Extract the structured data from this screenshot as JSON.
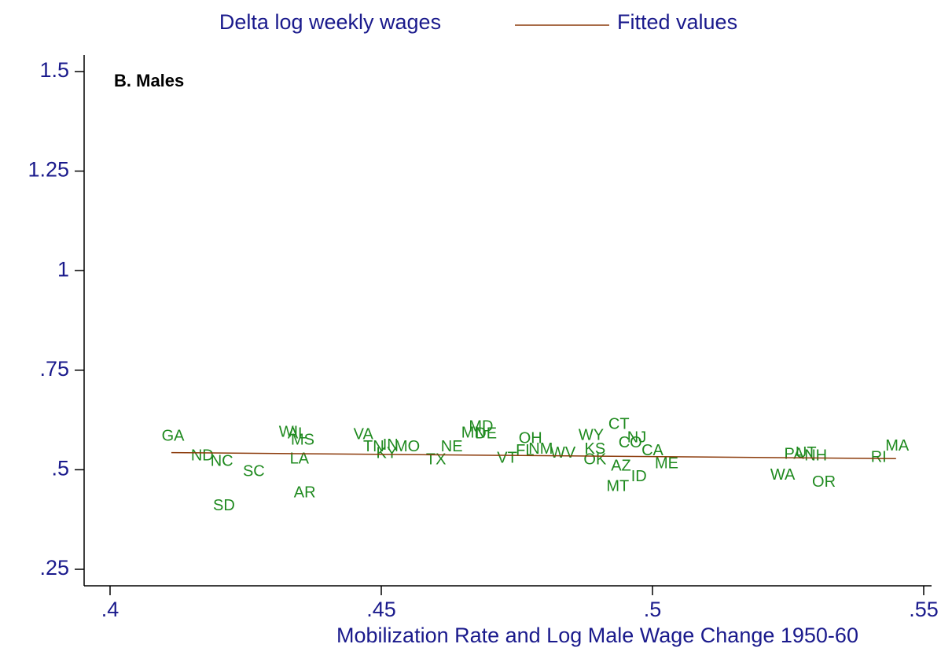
{
  "chart_data": {
    "type": "scatter",
    "annotation": "B. Males",
    "xlabel": "Mobilization Rate and Log Male Wage Change 1950-60",
    "xlim": [
      0.4,
      0.55
    ],
    "ylim": [
      0.25,
      1.5
    ],
    "xticks": [
      {
        "value": 0.4,
        "label": ".4"
      },
      {
        "value": 0.45,
        "label": ".45"
      },
      {
        "value": 0.5,
        "label": ".5"
      },
      {
        "value": 0.55,
        "label": ".55"
      }
    ],
    "yticks": [
      {
        "value": 0.25,
        "label": ".25"
      },
      {
        "value": 0.5,
        "label": ".5"
      },
      {
        "value": 0.75,
        "label": ".75"
      },
      1,
      1.25,
      1.5
    ],
    "series": [
      {
        "name": "Delta log weekly wages",
        "color": "#1f8a1f",
        "type": "label-scatter",
        "labels": [
          "GA",
          "ND",
          "NC",
          "SC",
          "SD",
          "WI",
          "AL",
          "MS",
          "LA",
          "AR",
          "VA",
          "TN",
          "IN",
          "MO",
          "KY",
          "TX",
          "NE",
          "MD",
          "MN",
          "DE",
          "OH",
          "VT",
          "FL",
          "NM",
          "WV",
          "KS",
          "WY",
          "OK",
          "CT",
          "NJ",
          "CO",
          "CA",
          "AZ",
          "ID",
          "MT",
          "ME",
          "WA",
          "PA",
          "UT",
          "NH",
          "OR",
          "RI",
          "MA"
        ],
        "x": [
          0.4116,
          0.417,
          0.4206,
          0.4265,
          0.421,
          0.4329,
          0.4345,
          0.4355,
          0.4349,
          0.4359,
          0.4467,
          0.4486,
          0.4517,
          0.4548,
          0.451,
          0.4601,
          0.463,
          0.4684,
          0.467,
          0.4693,
          0.4775,
          0.4732,
          0.4765,
          0.4794,
          0.4835,
          0.4894,
          0.4887,
          0.4894,
          0.4938,
          0.4971,
          0.4959,
          0.5,
          0.4942,
          0.4975,
          0.4936,
          0.5026,
          0.524,
          0.5261,
          0.5283,
          0.5301,
          0.5316,
          0.5417,
          0.5451
        ],
        "values": [
          0.583,
          0.534,
          0.52,
          0.494,
          0.409,
          0.593,
          0.589,
          0.573,
          0.526,
          0.441,
          0.587,
          0.557,
          0.561,
          0.557,
          0.54,
          0.524,
          0.557,
          0.607,
          0.591,
          0.589,
          0.577,
          0.528,
          0.547,
          0.551,
          0.541,
          0.551,
          0.585,
          0.524,
          0.613,
          0.579,
          0.567,
          0.547,
          0.508,
          0.482,
          0.457,
          0.514,
          0.486,
          0.538,
          0.541,
          0.534,
          0.468,
          0.53,
          0.559
        ]
      },
      {
        "name": "Fitted values",
        "color": "#8b3a0a",
        "type": "line",
        "x": [
          0.4113,
          0.5449
        ],
        "values": [
          0.543,
          0.528
        ]
      }
    ]
  }
}
